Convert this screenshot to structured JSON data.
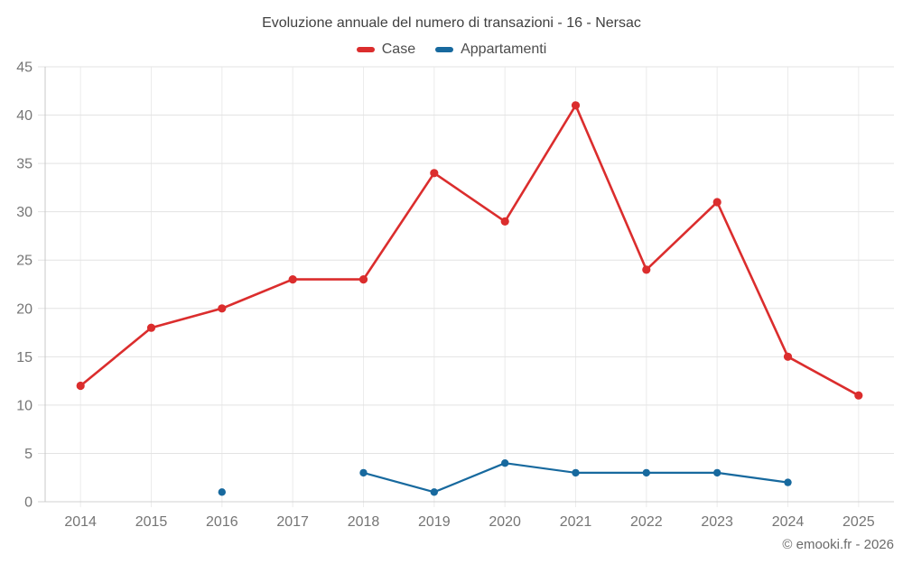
{
  "chart_data": {
    "type": "line",
    "title": "Evoluzione annuale del numero di transazioni - 16 - Nersac",
    "categories": [
      "2014",
      "2015",
      "2016",
      "2017",
      "2018",
      "2019",
      "2020",
      "2021",
      "2022",
      "2023",
      "2024",
      "2025"
    ],
    "series": [
      {
        "name": "Case",
        "color": "#db2d2d",
        "point_radius": 4.6,
        "line_width": 2.6,
        "values": [
          12,
          18,
          20,
          23,
          23,
          34,
          29,
          41,
          24,
          31,
          15,
          11
        ]
      },
      {
        "name": "Appartamenti",
        "color": "#17699e",
        "point_radius": 4.2,
        "line_width": 2.2,
        "values": [
          null,
          null,
          1,
          null,
          3,
          1,
          4,
          3,
          3,
          3,
          2,
          null
        ]
      }
    ],
    "xlabel": "",
    "ylabel": "",
    "ylim": [
      0,
      45
    ],
    "ytick_step": 5,
    "grid": true,
    "legend_position": "top",
    "colors": {
      "title_text": "#404040",
      "legend_text": "#4d4d4d",
      "tick_text": "#757575",
      "grid_h": "#e3e3e3",
      "grid_v": "#ececec",
      "zero_line": "#d0d0d0",
      "axis_line": "#c8c8c8"
    }
  },
  "footer": {
    "copyright": "© emooki.fr - 2026"
  }
}
